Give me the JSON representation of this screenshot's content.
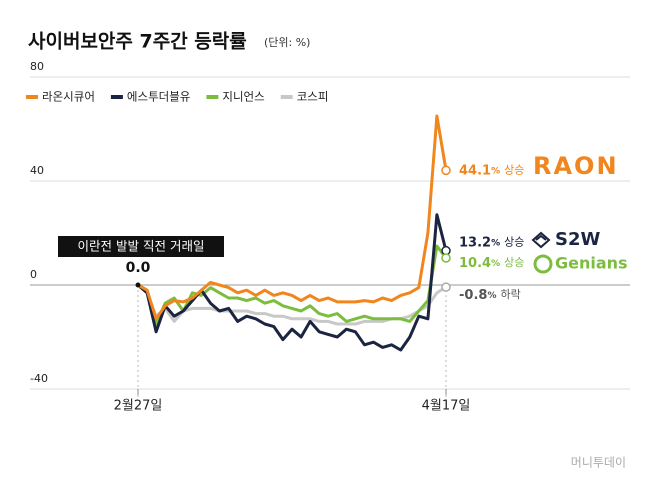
{
  "chart_data": {
    "type": "line",
    "title": "사이버보안주 7주간 등락률",
    "subtitle": "(단위: %)",
    "categories": [
      "2월27일",
      null,
      null,
      null,
      null,
      null,
      null,
      null,
      null,
      null,
      null,
      null,
      null,
      null,
      null,
      null,
      null,
      null,
      null,
      null,
      null,
      null,
      null,
      null,
      null,
      null,
      null,
      null,
      null,
      null,
      null,
      null,
      null,
      null,
      "4월17일"
    ],
    "ylim": [
      -40,
      80
    ],
    "yticks": [
      -40,
      0,
      40,
      80
    ],
    "grid": true,
    "legend": "top-left",
    "unit": "%",
    "annotation": "이란전 발발 직전 거래일",
    "start_label": "0.0",
    "series": [
      {
        "name": "라온시큐어",
        "color": "#f0861d",
        "end_note": "상승",
        "brand": "RAON",
        "values": [
          0,
          -2,
          -13,
          -8,
          -6,
          -6.5,
          -5,
          -2,
          1,
          0,
          -1,
          -3,
          -2,
          -4,
          -2,
          -4,
          -3,
          -4,
          -6,
          -4,
          -6,
          -5,
          -6.5,
          -6.5,
          -6.5,
          -6,
          -6.5,
          -5,
          -6,
          -4,
          -3,
          -1,
          20,
          65,
          44.1
        ]
      },
      {
        "name": "에스투더블유",
        "color": "#1b2440",
        "end_note": "상승",
        "brand": "S2W",
        "values": [
          0,
          -3,
          -18,
          -8,
          -12,
          -10,
          -6,
          -2,
          -7,
          -10,
          -9,
          -14,
          -12,
          -13,
          -15,
          -16,
          -21,
          -17,
          -20,
          -14,
          -18,
          -19,
          -20,
          -17,
          -18,
          -23,
          -22,
          -24,
          -23,
          -25,
          -20,
          -12,
          -13,
          27,
          13.2
        ]
      },
      {
        "name": "지니언스",
        "color": "#7cbd3f",
        "end_note": "상승",
        "brand": "Genians",
        "values": [
          0,
          -2,
          -15,
          -7,
          -5,
          -10,
          -3,
          -4,
          -1,
          -3,
          -5,
          -5,
          -6,
          -5,
          -7,
          -6,
          -8,
          -9,
          -10,
          -8,
          -11,
          -12,
          -11,
          -14,
          -13,
          -12,
          -13,
          -13,
          -13,
          -13,
          -14,
          -10,
          -6,
          15,
          10.4
        ]
      },
      {
        "name": "코스피",
        "color": "#c8c8c8",
        "end_note": "하락",
        "values": [
          0,
          -3,
          -12,
          -9,
          -14,
          -10,
          -9,
          -9,
          -9,
          -10,
          -10,
          -10,
          -10,
          -11,
          -11,
          -12,
          -12,
          -13,
          -13,
          -13,
          -14,
          -14,
          -15,
          -15,
          -15,
          -14,
          -14,
          -14,
          -13,
          -13,
          -12,
          -10,
          -8,
          -3,
          -0.8
        ]
      }
    ],
    "watermark": "머니투데이"
  }
}
